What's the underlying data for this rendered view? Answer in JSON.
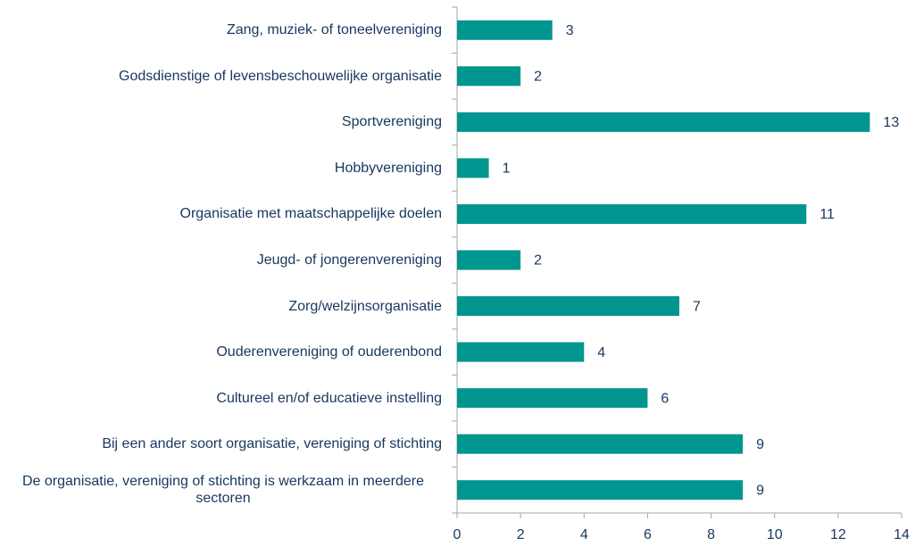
{
  "chart_data": {
    "type": "bar",
    "orientation": "horizontal",
    "categories": [
      "Zang, muziek- of toneelvereniging",
      "Godsdienstige of levensbeschouwelijke organisatie",
      "Sportvereniging",
      "Hobbyvereniging",
      "Organisatie met maatschappelijke doelen",
      "Jeugd- of jongerenvereniging",
      "Zorg/welzijnsorganisatie",
      "Ouderenvereniging of ouderenbond",
      "Cultureel en/of educatieve instelling",
      "Bij een ander soort organisatie, vereniging of stichting",
      "De organisatie, vereniging of stichting is werkzaam in meerdere sectoren"
    ],
    "values": [
      3,
      2,
      13,
      1,
      11,
      2,
      7,
      4,
      6,
      9,
      9
    ],
    "color": "#00968f",
    "xlim": [
      0,
      14
    ],
    "xticks": [
      0,
      2,
      4,
      6,
      8,
      10,
      12,
      14
    ],
    "grid": false
  }
}
